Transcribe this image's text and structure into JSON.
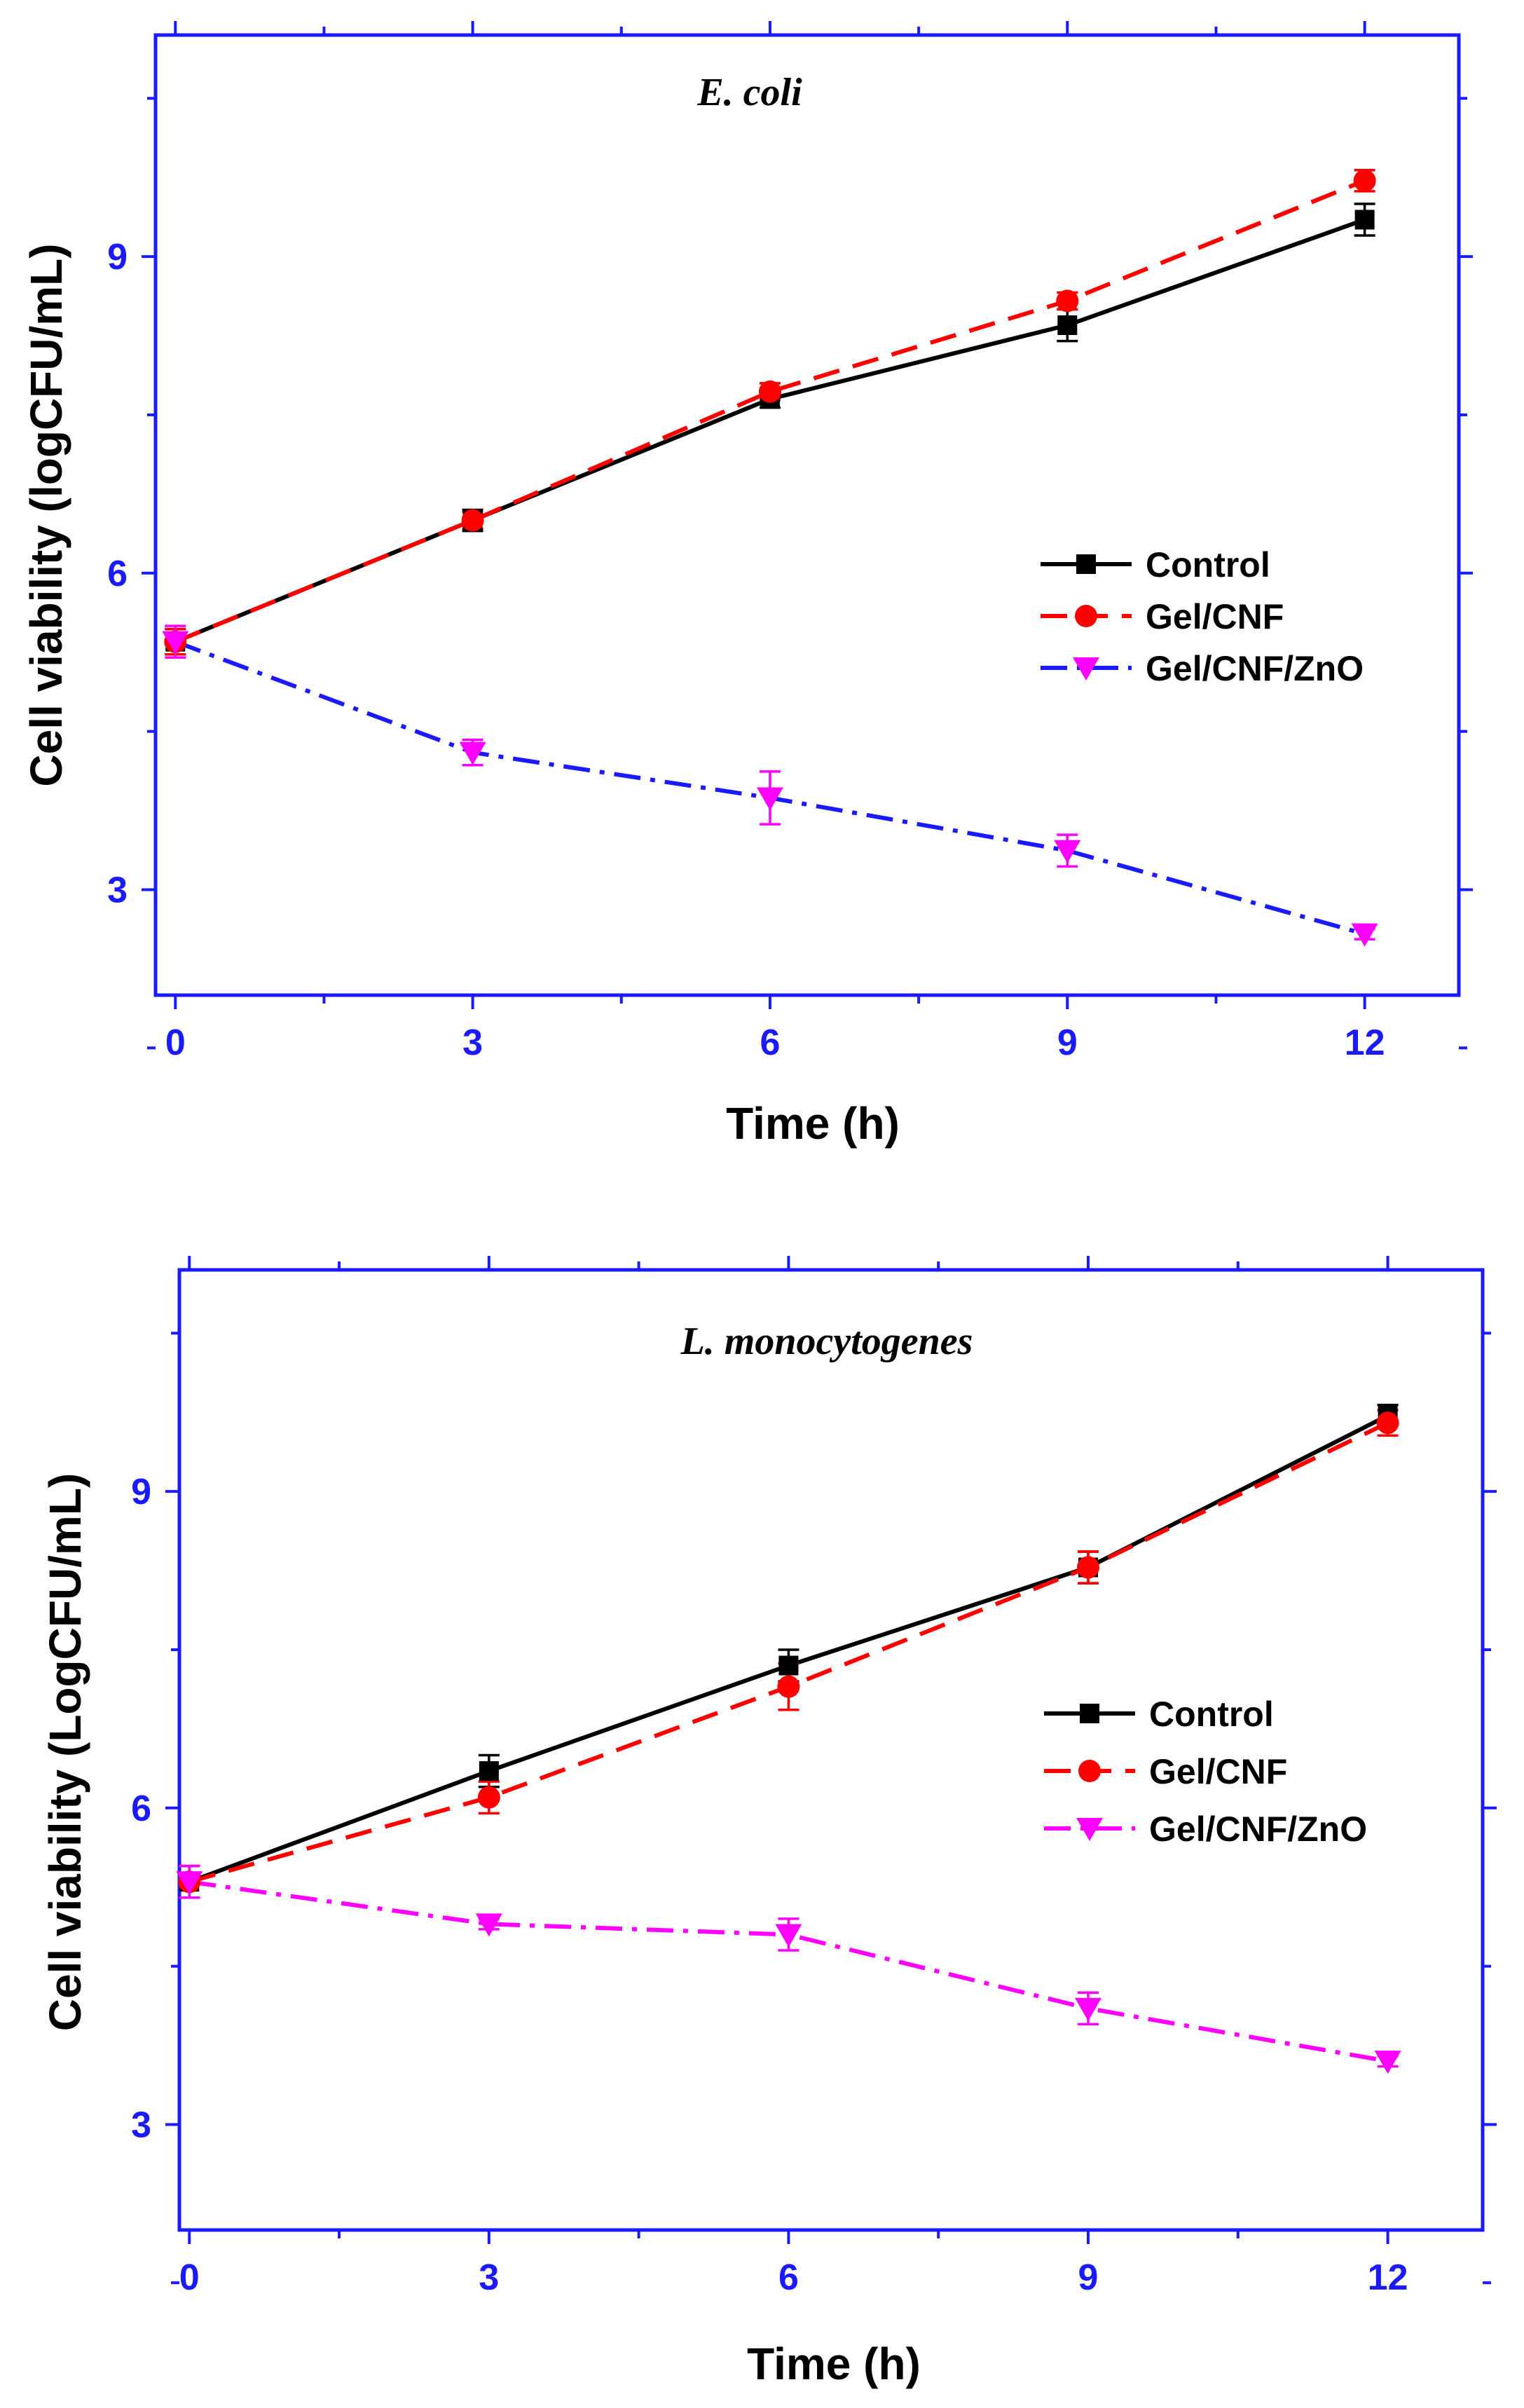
{
  "chart_data": [
    {
      "type": "line",
      "title": "E. coli",
      "xlabel": "Time (h)",
      "ylabel": "Cell viability (logCFU/mL)",
      "xlim": [
        -0.2,
        12.95
      ],
      "ylim": [
        2.0,
        11.1
      ],
      "xticks": [
        0,
        3,
        6,
        9,
        12
      ],
      "yticks": [
        3,
        6,
        9
      ],
      "x": [
        0,
        3,
        6,
        9,
        12
      ],
      "legend_position": "center-right",
      "series": [
        {
          "name": "Control",
          "values": [
            5.35,
            6.5,
            7.65,
            8.35,
            9.35
          ],
          "errors": [
            0.12,
            0.1,
            0.08,
            0.15,
            0.15
          ],
          "color": "#000000",
          "dash": "solid",
          "lineColor": "#000000",
          "markerColor": "#000000",
          "marker": "square"
        },
        {
          "name": "Gel/CNF",
          "values": [
            5.35,
            6.5,
            7.72,
            8.58,
            9.72
          ],
          "errors": [
            0.12,
            0.08,
            0.08,
            0.08,
            0.1
          ],
          "color": "#ff0000",
          "dash": "dash",
          "lineColor": "#ff0000",
          "markerColor": "#ff0000",
          "marker": "circle"
        },
        {
          "name": "Gel/CNF/ZnO",
          "values": [
            5.35,
            4.3,
            3.87,
            3.37,
            2.58
          ],
          "errors": [
            0.15,
            0.12,
            0.25,
            0.15,
            0.05
          ],
          "color": "#1a1aff",
          "dash": "dashdot",
          "lineColor": "#1a1aff",
          "markerColor": "#ff00ff",
          "marker": "triangle-down"
        }
      ]
    },
    {
      "type": "line",
      "title": "L. monocytogenes",
      "xlabel": "Time (h)",
      "ylabel": "Cell viability (LogCFU/mL)",
      "xlim": [
        -0.1,
        12.95
      ],
      "ylim": [
        2.0,
        11.1
      ],
      "xticks": [
        0,
        3,
        6,
        9,
        12
      ],
      "yticks": [
        3,
        6,
        9
      ],
      "x": [
        0,
        3,
        6,
        9,
        12
      ],
      "legend_position": "center-right",
      "series": [
        {
          "name": "Control",
          "values": [
            5.3,
            6.35,
            7.35,
            8.28,
            9.72
          ],
          "errors": [
            0.15,
            0.15,
            0.15,
            0.15,
            0.1
          ],
          "color": "#000000",
          "dash": "solid",
          "lineColor": "#000000",
          "markerColor": "#000000",
          "marker": "square"
        },
        {
          "name": "Gel/CNF",
          "values": [
            5.3,
            6.1,
            7.15,
            8.28,
            9.65
          ],
          "errors": [
            0.15,
            0.15,
            0.22,
            0.15,
            0.12
          ],
          "color": "#ff0000",
          "dash": "dash",
          "lineColor": "#ff0000",
          "markerColor": "#ff0000",
          "marker": "circle"
        },
        {
          "name": "Gel/CNF/ZnO",
          "values": [
            5.3,
            4.9,
            4.8,
            4.1,
            3.6
          ],
          "errors": [
            0.15,
            0.05,
            0.15,
            0.15,
            0.05
          ],
          "color": "#ff00ff",
          "dash": "dashdot",
          "lineColor": "#ff00ff",
          "markerColor": "#ff00ff",
          "marker": "triangle-down"
        }
      ]
    }
  ]
}
